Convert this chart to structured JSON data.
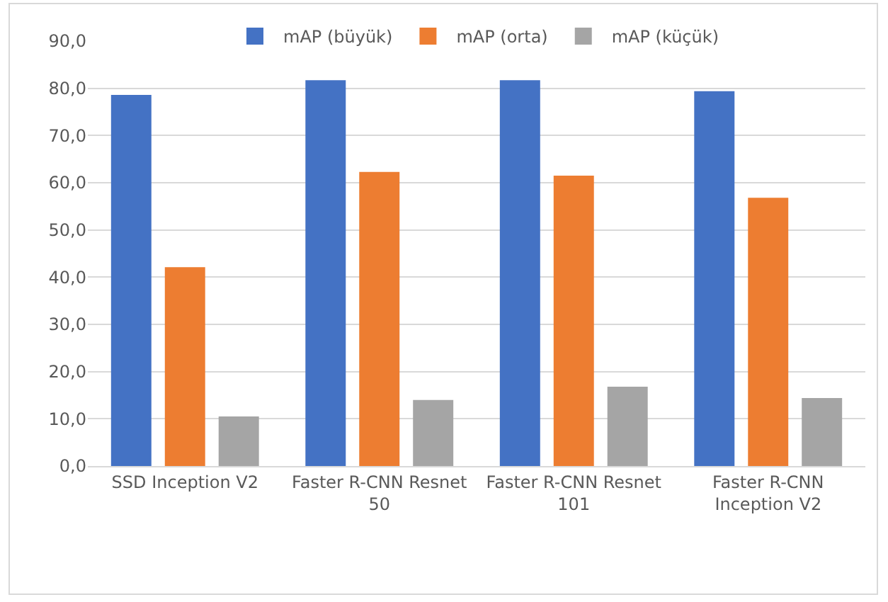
{
  "chart_data": {
    "type": "bar",
    "categories": [
      "SSD Inception V2",
      "Faster R-CNN Resnet 50",
      "Faster R-CNN Resnet 101",
      "Faster R-CNN Inception V2"
    ],
    "series": [
      {
        "name": "mAP (büyük)",
        "color": "#4472c4",
        "values": [
          78.6,
          81.7,
          81.7,
          79.4
        ]
      },
      {
        "name": "mAP (orta)",
        "color": "#ed7d31",
        "values": [
          42.1,
          62.3,
          61.5,
          56.8
        ]
      },
      {
        "name": "mAP (küçük)",
        "color": "#a5a5a5",
        "values": [
          10.5,
          14.0,
          16.8,
          14.4
        ]
      }
    ],
    "ylim": [
      0,
      90
    ],
    "yticks": [
      {
        "value": 0,
        "label": "0,0"
      },
      {
        "value": 10,
        "label": "10,0"
      },
      {
        "value": 20,
        "label": "20,0"
      },
      {
        "value": 30,
        "label": "30,0"
      },
      {
        "value": 40,
        "label": "40,0"
      },
      {
        "value": 50,
        "label": "50,0"
      },
      {
        "value": 60,
        "label": "60,0"
      },
      {
        "value": 70,
        "label": "70,0"
      },
      {
        "value": 80,
        "label": "80,0"
      },
      {
        "value": 90,
        "label": "90,0"
      }
    ],
    "grid": "y",
    "legend": "top"
  }
}
